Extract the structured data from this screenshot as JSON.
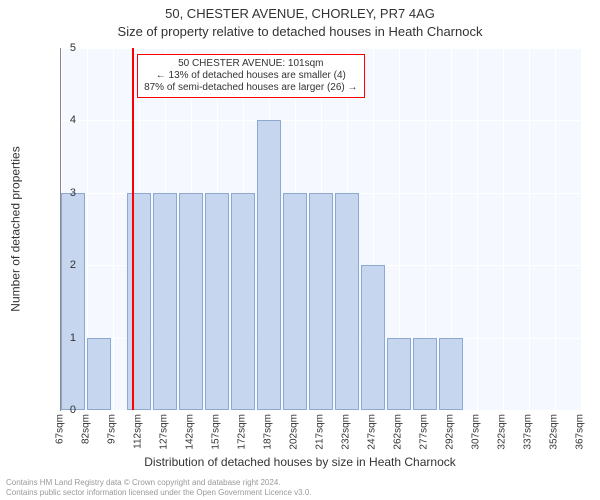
{
  "titles": {
    "line1": "50, CHESTER AVENUE, CHORLEY, PR7 4AG",
    "line2": "Size of property relative to detached houses in Heath Charnock"
  },
  "chart": {
    "type": "histogram",
    "background_color": "#f5f8ff",
    "grid_color": "#ffffff",
    "bar_fill": "#c7d6ef",
    "bar_border": "#8fa8d0",
    "marker_color": "#ff0000",
    "ylim": [
      0,
      5
    ],
    "yticks": [
      0,
      1,
      2,
      3,
      4,
      5
    ],
    "ylabel": "Number of detached properties",
    "xlabel": "Distribution of detached houses by size in Heath Charnock",
    "xticks": [
      "67sqm",
      "82sqm",
      "97sqm",
      "112sqm",
      "127sqm",
      "142sqm",
      "157sqm",
      "172sqm",
      "187sqm",
      "202sqm",
      "217sqm",
      "232sqm",
      "247sqm",
      "262sqm",
      "277sqm",
      "292sqm",
      "307sqm",
      "322sqm",
      "337sqm",
      "352sqm",
      "367sqm"
    ],
    "xstart": 60,
    "xstep": 15,
    "bars": [
      {
        "x": 67,
        "h": 3
      },
      {
        "x": 82,
        "h": 1
      },
      {
        "x": 105,
        "h": 3
      },
      {
        "x": 120,
        "h": 3
      },
      {
        "x": 135,
        "h": 3
      },
      {
        "x": 150,
        "h": 3
      },
      {
        "x": 165,
        "h": 3
      },
      {
        "x": 180,
        "h": 4
      },
      {
        "x": 195,
        "h": 3
      },
      {
        "x": 210,
        "h": 3
      },
      {
        "x": 225,
        "h": 3
      },
      {
        "x": 240,
        "h": 2
      },
      {
        "x": 255,
        "h": 1
      },
      {
        "x": 270,
        "h": 1
      },
      {
        "x": 285,
        "h": 1
      }
    ],
    "bar_width_units": 14,
    "marker_x": 101
  },
  "annotation": {
    "border_color": "#ff0000",
    "lines": [
      "50 CHESTER AVENUE: 101sqm",
      "← 13% of detached houses are smaller (4)",
      "87% of semi-detached houses are larger (26) →"
    ]
  },
  "footer": {
    "line1": "Contains HM Land Registry data © Crown copyright and database right 2024.",
    "line2": "Contains public sector information licensed under the Open Government Licence v3.0."
  }
}
